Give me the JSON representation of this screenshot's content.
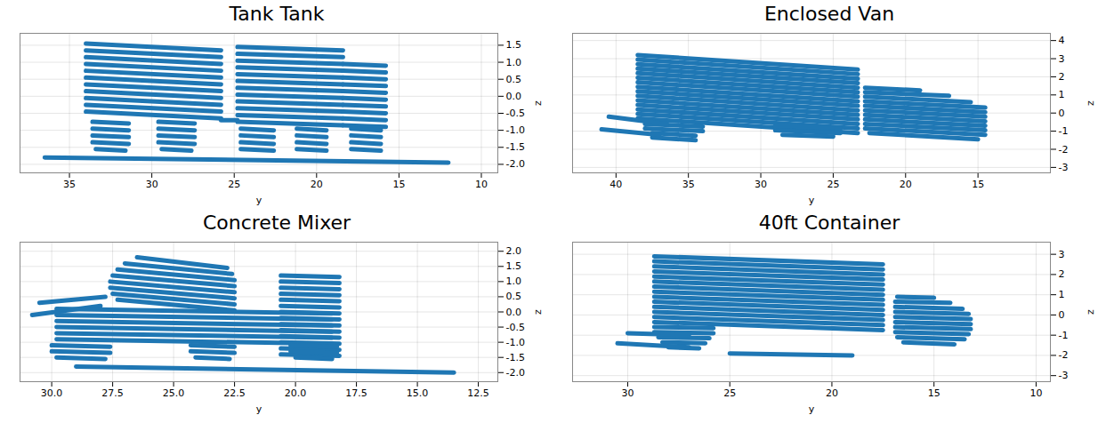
{
  "chart_data": [
    {
      "type": "line",
      "title": "Tank Tank",
      "xlabel": "y",
      "ylabel": "z",
      "color": "#1f77b4",
      "grid": true,
      "xlim": [
        38,
        9
      ],
      "ylim": [
        -2.25,
        1.85
      ],
      "xticks": [
        35,
        30,
        25,
        20,
        15,
        10
      ],
      "yticks": [
        1.5,
        {
          "value": 1,
          "label": "1.0"
        },
        0.5,
        {
          "value": 0,
          "label": "0.0"
        },
        -0.5,
        {
          "value": -1,
          "label": "-1.0"
        },
        -1.5,
        {
          "value": -2,
          "label": "-2.0"
        }
      ],
      "segments": [
        [
          34,
          1.55,
          25.8,
          1.35
        ],
        [
          34,
          1.35,
          25.8,
          1.15
        ],
        [
          34,
          1.15,
          25.8,
          0.95
        ],
        [
          34,
          0.95,
          25.8,
          0.75
        ],
        [
          34,
          0.75,
          25.8,
          0.55
        ],
        [
          34,
          0.55,
          25.8,
          0.35
        ],
        [
          34,
          0.35,
          25.8,
          0.15
        ],
        [
          34,
          0.15,
          25.8,
          -0.05
        ],
        [
          34,
          -0.05,
          25.8,
          -0.25
        ],
        [
          34,
          -0.25,
          25.8,
          -0.45
        ],
        [
          34,
          -0.45,
          25.8,
          -0.65
        ],
        [
          33.6,
          -0.75,
          31.4,
          -0.8
        ],
        [
          33.6,
          -0.95,
          31.4,
          -1.0
        ],
        [
          33.6,
          -1.15,
          31.4,
          -1.2
        ],
        [
          33.6,
          -1.35,
          31.4,
          -1.4
        ],
        [
          33.4,
          -1.55,
          31.6,
          -1.6
        ],
        [
          29.6,
          -0.75,
          27.4,
          -0.8
        ],
        [
          29.6,
          -0.95,
          27.4,
          -1.0
        ],
        [
          29.6,
          -1.15,
          27.4,
          -1.2
        ],
        [
          29.6,
          -1.35,
          27.4,
          -1.4
        ],
        [
          29.4,
          -1.55,
          27.6,
          -1.6
        ],
        [
          25.8,
          -0.7,
          24.8,
          -0.7
        ],
        [
          24.8,
          1.45,
          18.4,
          1.35
        ],
        [
          24.8,
          1.25,
          18.4,
          1.15
        ],
        [
          24.8,
          1.05,
          18.4,
          0.95
        ],
        [
          24.8,
          0.85,
          18.4,
          0.75
        ],
        [
          24.8,
          0.65,
          18.4,
          0.55
        ],
        [
          24.8,
          0.45,
          18.4,
          0.35
        ],
        [
          24.8,
          0.25,
          18.4,
          0.15
        ],
        [
          24.8,
          0.05,
          18.4,
          -0.05
        ],
        [
          24.8,
          -0.15,
          18.4,
          -0.25
        ],
        [
          24.8,
          -0.35,
          18.4,
          -0.45
        ],
        [
          24.8,
          -0.55,
          18.4,
          -0.65
        ],
        [
          24.8,
          -0.75,
          18.4,
          -0.85
        ],
        [
          18.4,
          0.95,
          15.8,
          0.9
        ],
        [
          18.4,
          0.75,
          15.8,
          0.7
        ],
        [
          18.4,
          0.55,
          15.8,
          0.5
        ],
        [
          18.4,
          0.35,
          15.8,
          0.3
        ],
        [
          18.4,
          0.15,
          15.8,
          0.1
        ],
        [
          18.4,
          -0.05,
          15.8,
          -0.1
        ],
        [
          18.4,
          -0.25,
          15.8,
          -0.3
        ],
        [
          18.4,
          -0.45,
          15.8,
          -0.5
        ],
        [
          18.4,
          -0.65,
          15.8,
          -0.7
        ],
        [
          18.4,
          -0.85,
          15.8,
          -0.9
        ],
        [
          24.6,
          -0.95,
          22.6,
          -1.0
        ],
        [
          24.6,
          -1.15,
          22.6,
          -1.2
        ],
        [
          24.6,
          -1.35,
          22.6,
          -1.4
        ],
        [
          24.6,
          -1.55,
          22.6,
          -1.6
        ],
        [
          21.2,
          -0.95,
          19.4,
          -1.0
        ],
        [
          21.2,
          -1.15,
          19.4,
          -1.2
        ],
        [
          21.2,
          -1.35,
          19.4,
          -1.4
        ],
        [
          21.2,
          -1.55,
          19.4,
          -1.6
        ],
        [
          17.9,
          -0.95,
          16.1,
          -1.0
        ],
        [
          17.9,
          -1.15,
          16.1,
          -1.2
        ],
        [
          17.9,
          -1.35,
          16.1,
          -1.4
        ],
        [
          17.9,
          -1.55,
          16.1,
          -1.6
        ],
        [
          36.5,
          -1.8,
          12,
          -1.95
        ]
      ]
    },
    {
      "type": "line",
      "title": "Enclosed Van",
      "xlabel": "y",
      "ylabel": "z",
      "color": "#1f77b4",
      "grid": true,
      "xlim": [
        43,
        10
      ],
      "ylim": [
        -3.3,
        4.4
      ],
      "xticks": [
        40,
        35,
        30,
        25,
        20,
        15
      ],
      "yticks": [
        4,
        3,
        2,
        1,
        0,
        -1,
        -2,
        -3
      ],
      "segments": [
        [
          38.5,
          3.2,
          23.3,
          2.4
        ],
        [
          38.5,
          2.95,
          23.3,
          2.15
        ],
        [
          38.5,
          2.7,
          23.3,
          1.9
        ],
        [
          38.5,
          2.45,
          23.3,
          1.65
        ],
        [
          38.5,
          2.2,
          23.3,
          1.4
        ],
        [
          38.5,
          1.95,
          23.3,
          1.15
        ],
        [
          38.5,
          1.7,
          23.3,
          0.9
        ],
        [
          38.5,
          1.45,
          23.3,
          0.65
        ],
        [
          38.5,
          1.2,
          23.3,
          0.4
        ],
        [
          38.5,
          0.95,
          23.3,
          0.15
        ],
        [
          38.5,
          0.7,
          23.3,
          -0.1
        ],
        [
          38.5,
          0.45,
          23.3,
          -0.35
        ],
        [
          38.5,
          0.2,
          23.3,
          -0.6
        ],
        [
          38.5,
          -0.05,
          23.3,
          -0.85
        ],
        [
          38.5,
          -0.3,
          23.3,
          -1.1
        ],
        [
          38,
          -0.6,
          34,
          -0.75
        ],
        [
          38,
          -0.85,
          34,
          -1.0
        ],
        [
          37.5,
          -1.1,
          34.5,
          -1.25
        ],
        [
          37.5,
          -1.35,
          34.5,
          -1.5
        ],
        [
          29,
          -0.7,
          24.5,
          -0.85
        ],
        [
          29,
          -0.95,
          24.5,
          -1.1
        ],
        [
          28.5,
          -1.2,
          25,
          -1.3
        ],
        [
          22.8,
          1.4,
          19,
          1.25
        ],
        [
          22.8,
          1.15,
          17,
          0.95
        ],
        [
          22.8,
          0.9,
          15.5,
          0.6
        ],
        [
          22.8,
          0.65,
          14.5,
          0.3
        ],
        [
          22.8,
          0.4,
          14.5,
          0.05
        ],
        [
          22.8,
          0.15,
          14.5,
          -0.2
        ],
        [
          22.8,
          -0.1,
          14.5,
          -0.45
        ],
        [
          22.8,
          -0.35,
          14.5,
          -0.7
        ],
        [
          22.8,
          -0.6,
          14.5,
          -0.95
        ],
        [
          22.8,
          -0.85,
          14.5,
          -1.2
        ],
        [
          22.5,
          -1.1,
          15,
          -1.45
        ],
        [
          40.5,
          -0.2,
          36.5,
          -0.6
        ],
        [
          41,
          -0.9,
          37,
          -1.2
        ]
      ]
    },
    {
      "type": "line",
      "title": "Concrete Mixer",
      "xlabel": "y",
      "ylabel": "z",
      "color": "#1f77b4",
      "grid": true,
      "xlim": [
        31.3,
        11.7
      ],
      "ylim": [
        -2.3,
        2.3
      ],
      "xticks": [
        {
          "value": 30,
          "label": "30.0"
        },
        27.5,
        {
          "value": 25,
          "label": "25.0"
        },
        22.5,
        {
          "value": 20,
          "label": "20.0"
        },
        17.5,
        {
          "value": 15,
          "label": "15.0"
        },
        12.5
      ],
      "yticks": [
        {
          "value": 2,
          "label": "2.0"
        },
        1.5,
        {
          "value": 1,
          "label": "1.0"
        },
        0.5,
        {
          "value": 0,
          "label": "0.0"
        },
        -0.5,
        {
          "value": -1,
          "label": "-1.0"
        },
        -1.5,
        {
          "value": -2,
          "label": "-2.0"
        }
      ],
      "segments": [
        [
          26.5,
          1.8,
          22.8,
          1.45
        ],
        [
          27,
          1.6,
          22.6,
          1.25
        ],
        [
          27.3,
          1.4,
          22.5,
          1.05
        ],
        [
          27.5,
          1.2,
          22.5,
          0.85
        ],
        [
          27.6,
          1.0,
          22.5,
          0.65
        ],
        [
          27.6,
          0.8,
          22.5,
          0.45
        ],
        [
          27.5,
          0.6,
          22.5,
          0.25
        ],
        [
          27.3,
          0.4,
          22.5,
          0.05
        ],
        [
          30.5,
          0.3,
          27.8,
          0.5
        ],
        [
          30.8,
          -0.1,
          28,
          0.2
        ],
        [
          29.8,
          0.1,
          18.5,
          -0.05
        ],
        [
          29.8,
          -0.1,
          18.5,
          -0.25
        ],
        [
          29.8,
          -0.3,
          18.5,
          -0.45
        ],
        [
          29.8,
          -0.5,
          18.5,
          -0.65
        ],
        [
          29.8,
          -0.7,
          18.5,
          -0.85
        ],
        [
          29.8,
          -0.9,
          18.5,
          -1.05
        ],
        [
          20.6,
          1.2,
          18.2,
          1.15
        ],
        [
          20.6,
          1.0,
          18.2,
          0.95
        ],
        [
          20.6,
          0.8,
          18.2,
          0.75
        ],
        [
          20.6,
          0.6,
          18.2,
          0.55
        ],
        [
          20.6,
          0.4,
          18.2,
          0.35
        ],
        [
          20.6,
          0.2,
          18.2,
          0.15
        ],
        [
          20.6,
          0.0,
          18.2,
          -0.05
        ],
        [
          20.6,
          -0.2,
          18.2,
          -0.25
        ],
        [
          20.6,
          -0.4,
          18.2,
          -0.45
        ],
        [
          20.6,
          -0.6,
          18.2,
          -0.65
        ],
        [
          20.6,
          -0.8,
          18.2,
          -0.85
        ],
        [
          20.6,
          -1.0,
          18.2,
          -1.05
        ],
        [
          20.6,
          -1.2,
          18.2,
          -1.25
        ],
        [
          20.6,
          -1.4,
          18.2,
          -1.45
        ],
        [
          30,
          -1.1,
          27.6,
          -1.15
        ],
        [
          30,
          -1.3,
          27.6,
          -1.35
        ],
        [
          29.8,
          -1.5,
          27.8,
          -1.55
        ],
        [
          24.3,
          -1.1,
          22.5,
          -1.15
        ],
        [
          24.3,
          -1.3,
          22.5,
          -1.35
        ],
        [
          24.1,
          -1.5,
          22.7,
          -1.55
        ],
        [
          20.2,
          -1.1,
          18.3,
          -1.15
        ],
        [
          20.2,
          -1.3,
          18.3,
          -1.35
        ],
        [
          20,
          -1.5,
          18.5,
          -1.55
        ],
        [
          29,
          -1.8,
          13.5,
          -2.0
        ]
      ]
    },
    {
      "type": "line",
      "title": "40ft Container",
      "xlabel": "y",
      "ylabel": "z",
      "color": "#1f77b4",
      "grid": true,
      "xlim": [
        32.7,
        9.3
      ],
      "ylim": [
        -3.3,
        3.6
      ],
      "xticks": [
        30,
        25,
        20,
        15,
        10
      ],
      "yticks": [
        3,
        2,
        1,
        0,
        -1,
        -2,
        -3
      ],
      "segments": [
        [
          28.7,
          2.9,
          17.5,
          2.5
        ],
        [
          28.7,
          2.65,
          17.5,
          2.25
        ],
        [
          28.7,
          2.4,
          17.5,
          2.0
        ],
        [
          28.7,
          2.15,
          17.5,
          1.75
        ],
        [
          28.7,
          1.9,
          17.5,
          1.5
        ],
        [
          28.7,
          1.65,
          17.5,
          1.25
        ],
        [
          28.7,
          1.4,
          17.5,
          1.0
        ],
        [
          28.7,
          1.15,
          17.5,
          0.75
        ],
        [
          28.7,
          0.9,
          17.5,
          0.5
        ],
        [
          28.7,
          0.65,
          17.5,
          0.25
        ],
        [
          28.7,
          0.4,
          17.5,
          0.0
        ],
        [
          28.7,
          0.15,
          17.5,
          -0.25
        ],
        [
          28.7,
          -0.1,
          17.5,
          -0.5
        ],
        [
          28.7,
          -0.35,
          17.5,
          -0.75
        ],
        [
          28.7,
          -0.6,
          25.8,
          -0.65
        ],
        [
          28.7,
          -0.85,
          25.8,
          -0.9
        ],
        [
          28.5,
          -1.1,
          26,
          -1.15
        ],
        [
          28.3,
          -1.35,
          26.2,
          -1.4
        ],
        [
          28,
          -1.6,
          26.5,
          -1.65
        ],
        [
          16.8,
          0.9,
          15,
          0.85
        ],
        [
          16.9,
          0.65,
          14.2,
          0.6
        ],
        [
          16.9,
          0.4,
          13.6,
          0.3
        ],
        [
          16.9,
          0.15,
          13.3,
          0.05
        ],
        [
          16.9,
          -0.1,
          13.2,
          -0.2
        ],
        [
          16.9,
          -0.35,
          13.2,
          -0.45
        ],
        [
          16.9,
          -0.6,
          13.2,
          -0.7
        ],
        [
          16.9,
          -0.85,
          13.3,
          -0.95
        ],
        [
          16.8,
          -1.1,
          13.5,
          -1.2
        ],
        [
          16.5,
          -1.35,
          14,
          -1.45
        ],
        [
          30,
          -0.9,
          27,
          -1.0
        ],
        [
          30.5,
          -1.4,
          27,
          -1.6
        ],
        [
          25,
          -1.9,
          19,
          -2.0
        ]
      ]
    }
  ]
}
